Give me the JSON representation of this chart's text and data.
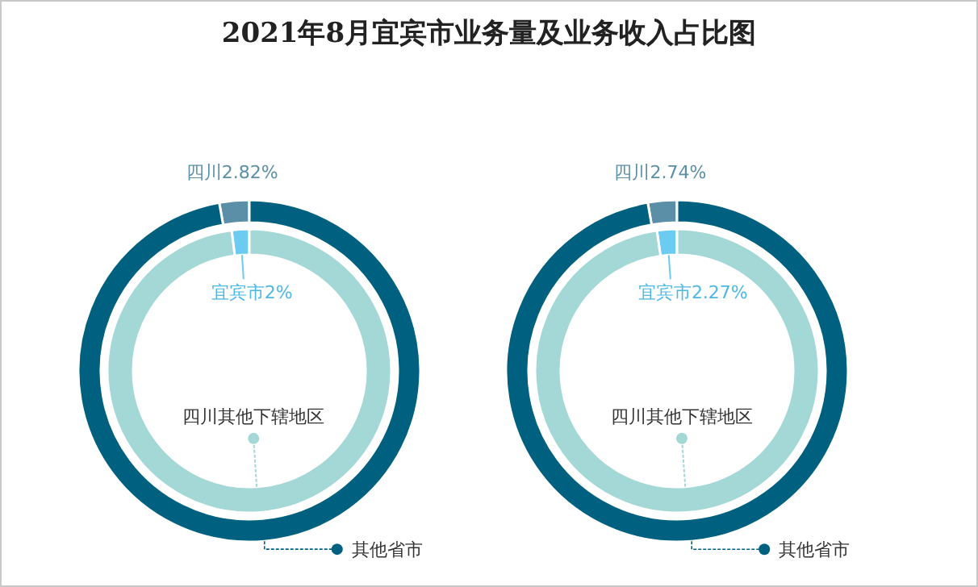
{
  "chart_data": [
    {
      "type": "donut",
      "title": "2021年8月宜宾市业务量及业务收入占比图",
      "categories": [
        "四川",
        "其他省市"
      ],
      "values": [
        2.82,
        97.18
      ],
      "colors": [
        "#5b8fa8",
        "#00607f"
      ],
      "value_labels": [
        "2.82%",
        null
      ]
    },
    {
      "type": "donut",
      "categories": [
        "宜宾市",
        "四川其他下辖地区"
      ],
      "values": [
        2,
        98
      ],
      "colors": [
        "#6ccbf0",
        "#a3d8d6"
      ],
      "value_labels": [
        "2%",
        null
      ]
    },
    {
      "type": "donut",
      "categories": [
        "四川",
        "其他省市"
      ],
      "values": [
        2.74,
        97.26
      ],
      "colors": [
        "#5b8fa8",
        "#00607f"
      ],
      "value_labels": [
        "2.74%",
        null
      ]
    },
    {
      "type": "donut",
      "categories": [
        "宜宾市",
        "四川其他下辖地区"
      ],
      "values": [
        2.27,
        97.73
      ],
      "colors": [
        "#6ccbf0",
        "#a3d8d6"
      ],
      "value_labels": [
        "2.27%",
        null
      ]
    }
  ]
}
